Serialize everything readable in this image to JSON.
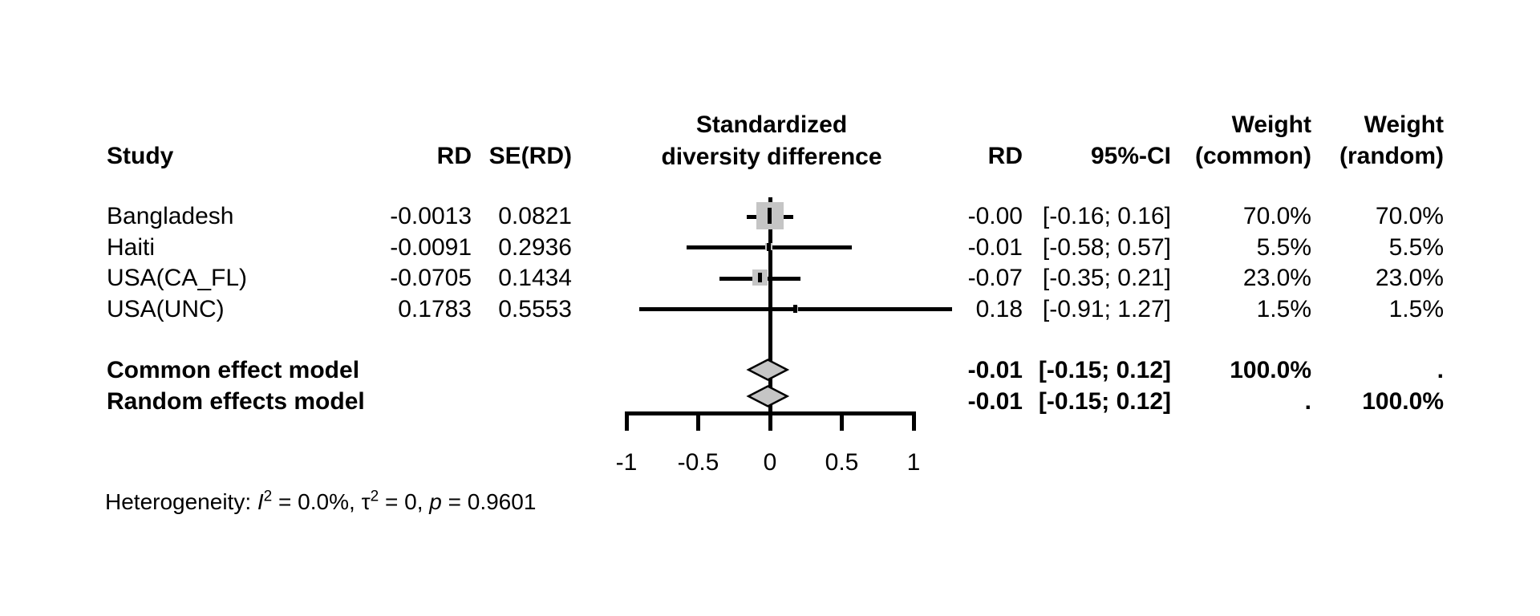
{
  "headers": {
    "study": "Study",
    "rd_left": "RD",
    "se_rd": "SE(RD)",
    "plot_line1": "Standardized",
    "plot_line2": "diversity difference",
    "rd_right": "RD",
    "ci": "95%-CI",
    "weight": "Weight",
    "weight_common_sub": "(common)",
    "weight_random_sub": "(random)"
  },
  "chart_data": {
    "type": "forest",
    "effect_measure": "RD",
    "xlabel": "",
    "axis": {
      "xlim": [
        -1,
        1
      ],
      "tick_values": [
        -1,
        -0.5,
        0,
        0.5,
        1
      ],
      "tick_labels": [
        "-1",
        "-0.5",
        "0",
        "0.5",
        "1"
      ],
      "ref_line": 0
    },
    "studies": [
      {
        "name": "Bangladesh",
        "rd": "-0.0013",
        "se_rd": "0.0821",
        "effect": "-0.00",
        "ci": "[-0.16; 0.16]",
        "weight_common": "70.0%",
        "weight_random": "70.0%",
        "effect_num": -0.0013,
        "lower": -0.16,
        "upper": 0.16,
        "weight_pct": 70.0
      },
      {
        "name": "Haiti",
        "rd": "-0.0091",
        "se_rd": "0.2936",
        "effect": "-0.01",
        "ci": "[-0.58; 0.57]",
        "weight_common": "5.5%",
        "weight_random": "5.5%",
        "effect_num": -0.0091,
        "lower": -0.58,
        "upper": 0.57,
        "weight_pct": 5.5
      },
      {
        "name": "USA(CA_FL)",
        "rd": "-0.0705",
        "se_rd": "0.1434",
        "effect": "-0.07",
        "ci": "[-0.35; 0.21]",
        "weight_common": "23.0%",
        "weight_random": "23.0%",
        "effect_num": -0.0705,
        "lower": -0.35,
        "upper": 0.21,
        "weight_pct": 23.0
      },
      {
        "name": "USA(UNC)",
        "rd": "0.1783",
        "se_rd": "0.5553",
        "effect": "0.18",
        "ci": "[-0.91; 1.27]",
        "weight_common": "1.5%",
        "weight_random": "1.5%",
        "effect_num": 0.1783,
        "lower": -0.91,
        "upper": 1.27,
        "weight_pct": 1.5
      }
    ],
    "models": [
      {
        "name": "Common effect model",
        "effect": "-0.01",
        "ci": "[-0.15; 0.12]",
        "weight_common": "100.0%",
        "weight_random": ".",
        "effect_num": -0.01,
        "lower": -0.15,
        "upper": 0.12
      },
      {
        "name": "Random effects model",
        "effect": "-0.01",
        "ci": "[-0.15; 0.12]",
        "weight_common": ".",
        "weight_random": "100.0%",
        "effect_num": -0.01,
        "lower": -0.15,
        "upper": 0.12
      }
    ]
  },
  "heterogeneity": {
    "prefix": "Heterogeneity: ",
    "i_symbol": "I",
    "sup2": "2",
    "i2_text": " = 0.0%, ",
    "tau_symbol": "τ",
    "tau_text": " = 0, ",
    "p_symbol": "p",
    "p_text": " = 0.9601"
  }
}
